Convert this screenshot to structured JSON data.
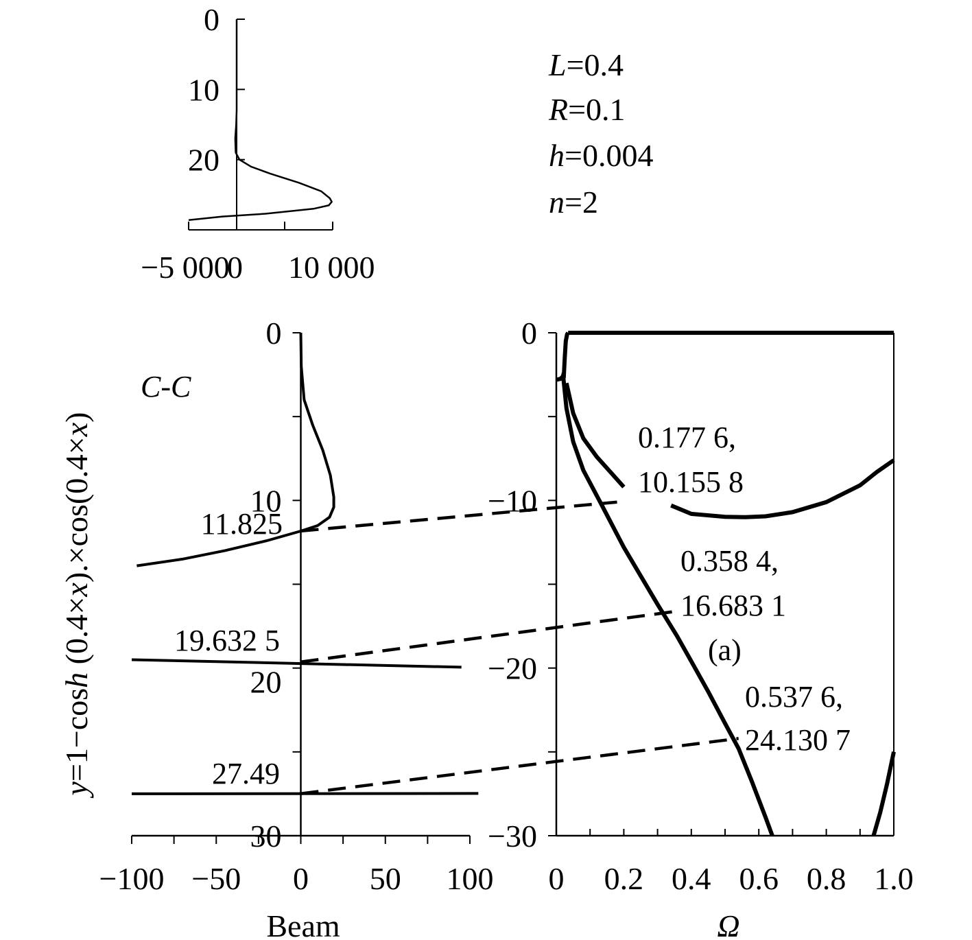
{
  "chart_data": [
    {
      "id": "inset",
      "type": "line",
      "title": "",
      "xlabel": "",
      "ylabel": "",
      "x_ticks": [
        "−5 000",
        "0",
        "10 000"
      ],
      "x_tick_values": [
        -5000,
        0,
        10000
      ],
      "y_ticks": [
        "0",
        "10",
        "20"
      ],
      "y_tick_values": [
        0,
        10,
        20
      ],
      "xlim": [
        -5000,
        10000
      ],
      "ylim": [
        0,
        30
      ],
      "y_inverted": true,
      "series": [
        {
          "x": [
            0,
            0,
            0,
            -50,
            -150,
            -100,
            300,
            1500,
            3500,
            6500,
            8800,
            9700,
            9900,
            9600,
            8000,
            3000,
            -1500,
            -5000
          ],
          "y": [
            0,
            8,
            13,
            15,
            17,
            19,
            20,
            21,
            22,
            23.3,
            24.5,
            25.5,
            26,
            26.5,
            27,
            27.7,
            28.1,
            28.6
          ]
        }
      ],
      "params": [
        {
          "var": "L",
          "value": "=0.4"
        },
        {
          "var": "R",
          "value": "=0.1"
        },
        {
          "var": "h",
          "value": "=0.004"
        },
        {
          "var": "n",
          "value": "=2"
        }
      ]
    },
    {
      "id": "beam",
      "type": "line",
      "title": "C-C",
      "xlabel": "Beam",
      "ylabel_parts": [
        "y",
        "=1−cos",
        "h",
        " (0.4×",
        "x",
        ").×cos(0.4×",
        "x",
        ")"
      ],
      "x_ticks": [
        "−100",
        "−50",
        "0",
        "50",
        "100"
      ],
      "x_tick_values": [
        -100,
        -50,
        0,
        50,
        100
      ],
      "y_ticks": [
        "0",
        "10",
        "20",
        "30"
      ],
      "y_tick_values": [
        0,
        10,
        20,
        30
      ],
      "xlim": [
        -100,
        100
      ],
      "ylim": [
        0,
        30
      ],
      "y_inverted": true,
      "roots": [
        {
          "label": "11.825",
          "y": 11.825
        },
        {
          "label": "19.632 5",
          "y": 19.6325
        },
        {
          "label": "27.49",
          "y": 27.49
        }
      ],
      "series": [
        {
          "x": [
            0,
            0.3,
            2,
            7,
            13,
            17.5,
            19.5,
            19.5,
            17,
            10,
            0,
            -20,
            -45,
            -70,
            -97
          ],
          "y": [
            0,
            2,
            4,
            5.5,
            7,
            8.5,
            9.8,
            10.4,
            11,
            11.5,
            11.83,
            12.4,
            13.0,
            13.5,
            13.9
          ]
        },
        {
          "x": [
            -100,
            95
          ],
          "y": [
            19.5,
            19.95
          ]
        },
        {
          "x": [
            -100,
            105
          ],
          "y": [
            27.5,
            27.48
          ]
        }
      ]
    },
    {
      "id": "omega",
      "type": "line",
      "title": "",
      "xlabel": "Ω",
      "ylabel": "",
      "x_ticks": [
        "0",
        "0.2",
        "0.4",
        "0.6",
        "0.8",
        "1.0"
      ],
      "x_tick_values": [
        0,
        0.2,
        0.4,
        0.6,
        0.8,
        1.0
      ],
      "y_ticks": [
        "0",
        "−10",
        "−20",
        "−30"
      ],
      "y_tick_values": [
        0,
        -10,
        -20,
        -30
      ],
      "xlim": [
        0,
        1.0
      ],
      "ylim": [
        -30,
        0
      ],
      "annotations": [
        {
          "line1": "0.177 6,",
          "line2": "10.155 8"
        },
        {
          "line1": "0.358 4,",
          "line2": "16.683 1"
        },
        {
          "line1": "0.537 6,",
          "line2": "24.130 7"
        }
      ],
      "panel_label": "(a)",
      "series": [
        {
          "x": [
            0.035,
            1.0
          ],
          "y": [
            0,
            0
          ]
        },
        {
          "x": [
            0.022,
            0.025,
            0.028,
            0.032,
            0.035
          ],
          "y": [
            -2.7,
            -1.5,
            -0.5,
            -0.1,
            0
          ]
        },
        {
          "x": [
            0,
            0.012,
            0.02,
            0.022
          ],
          "y": [
            -2.8,
            -2.75,
            -2.6,
            -2.4
          ]
        },
        {
          "x": [
            0.02,
            0.03,
            0.05,
            0.08,
            0.13,
            0.2,
            0.25,
            0.3,
            0.358,
            0.4,
            0.45,
            0.5,
            0.54,
            0.58,
            0.62,
            0.64
          ],
          "y": [
            -2.5,
            -4.5,
            -6.5,
            -8.2,
            -10.1,
            -12.8,
            -14.5,
            -16.2,
            -18.1,
            -19.6,
            -21.4,
            -23.3,
            -24.8,
            -26.8,
            -28.9,
            -30
          ]
        },
        {
          "x": [
            0.03,
            0.05,
            0.08,
            0.12,
            0.16,
            0.2
          ],
          "y": [
            -3.0,
            -4.8,
            -6.3,
            -7.4,
            -8.3,
            -9.2
          ]
        },
        {
          "x": [
            0.34,
            0.4,
            0.5,
            0.56,
            0.62,
            0.7,
            0.8,
            0.9,
            0.95,
            1.0
          ],
          "y": [
            -10.3,
            -10.8,
            -10.98,
            -11.0,
            -10.95,
            -10.7,
            -10.1,
            -9.1,
            -8.3,
            -7.6
          ]
        },
        {
          "x": [
            0.94,
            0.96,
            0.98,
            1.0
          ],
          "y": [
            -30,
            -28.6,
            -26.9,
            -25.0
          ]
        }
      ]
    }
  ]
}
